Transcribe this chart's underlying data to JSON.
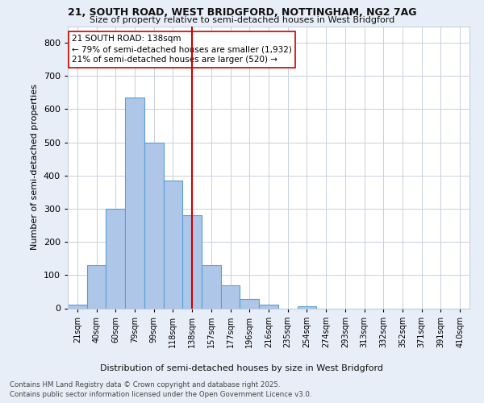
{
  "title_line1": "21, SOUTH ROAD, WEST BRIDGFORD, NOTTINGHAM, NG2 7AG",
  "title_line2": "Size of property relative to semi-detached houses in West Bridgford",
  "xlabel": "Distribution of semi-detached houses by size in West Bridgford",
  "ylabel": "Number of semi-detached properties",
  "categories": [
    "21sqm",
    "40sqm",
    "60sqm",
    "79sqm",
    "99sqm",
    "118sqm",
    "138sqm",
    "157sqm",
    "177sqm",
    "196sqm",
    "216sqm",
    "235sqm",
    "254sqm",
    "274sqm",
    "293sqm",
    "313sqm",
    "332sqm",
    "352sqm",
    "371sqm",
    "391sqm",
    "410sqm"
  ],
  "values": [
    10,
    130,
    300,
    635,
    500,
    385,
    280,
    130,
    70,
    28,
    12,
    0,
    6,
    0,
    0,
    0,
    0,
    0,
    0,
    0,
    0
  ],
  "bar_color": "#aec6e8",
  "bar_edge_color": "#5a9fd4",
  "vline_idx": 6,
  "vline_color": "#cc0000",
  "annotation_title": "21 SOUTH ROAD: 138sqm",
  "annotation_line1": "← 79% of semi-detached houses are smaller (1,932)",
  "annotation_line2": "21% of semi-detached houses are larger (520) →",
  "annotation_box_color": "#cc0000",
  "ylim": [
    0,
    850
  ],
  "yticks": [
    0,
    100,
    200,
    300,
    400,
    500,
    600,
    700,
    800
  ],
  "footer_line1": "Contains HM Land Registry data © Crown copyright and database right 2025.",
  "footer_line2": "Contains public sector information licensed under the Open Government Licence v3.0.",
  "bg_color": "#e8eef7",
  "plot_bg_color": "#ffffff",
  "grid_color": "#c8d0dc"
}
